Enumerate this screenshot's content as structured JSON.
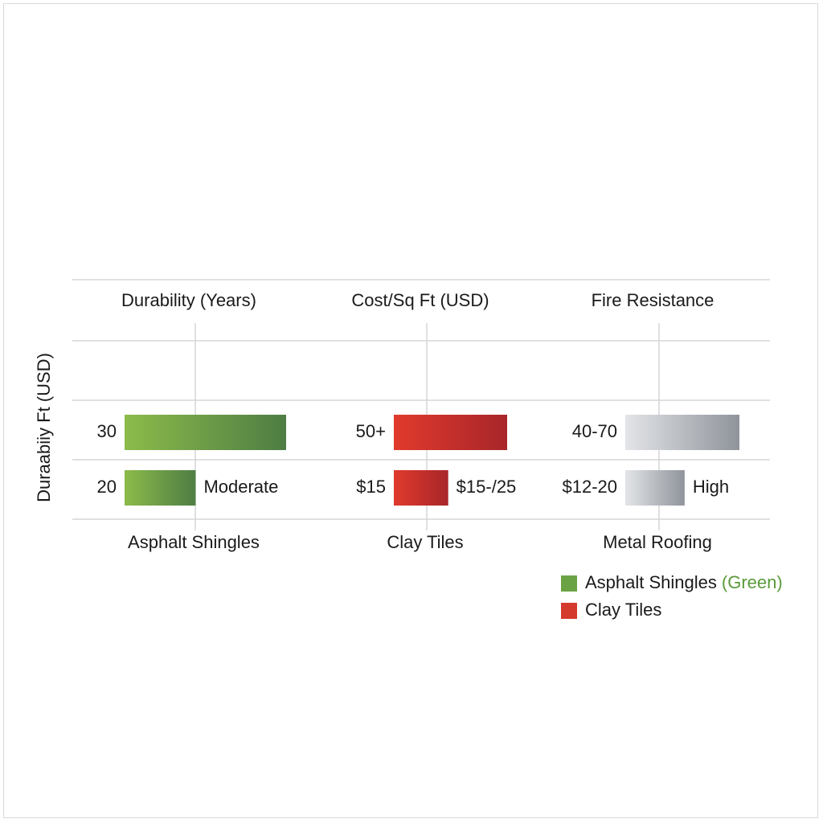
{
  "chart_data": {
    "type": "bar",
    "ylabel": "Duraabiiy Ft (USD)",
    "column_headers": [
      "Durability (Years)",
      "Cost/Sq Ft (USD)",
      "Fire Resistance"
    ],
    "categories": [
      "Asphalt Shingles",
      "Clay Tiles",
      "Metal Roofing"
    ],
    "groups": [
      {
        "category": "Asphalt Shingles",
        "colors": [
          "#8cbb4a",
          "#4e7d44"
        ],
        "bars": [
          {
            "left_label": "30",
            "right_label": "",
            "value": 1.0
          },
          {
            "left_label": "20",
            "right_label": "Moderate",
            "value": 0.44
          }
        ]
      },
      {
        "category": "Clay Tiles",
        "colors": [
          "#e03a2c",
          "#a8262a"
        ],
        "bars": [
          {
            "left_label": "50+",
            "right_label": "",
            "value": 1.0
          },
          {
            "left_label": "$15",
            "right_label": "$15-/25",
            "value": 0.48
          }
        ]
      },
      {
        "category": "Metal Roofing",
        "colors": [
          "#e3e5e8",
          "#8f949b"
        ],
        "bars": [
          {
            "left_label": "40-70",
            "right_label": "",
            "value": 1.0
          },
          {
            "left_label": "$12-20",
            "right_label": "High",
            "value": 0.52
          }
        ]
      }
    ],
    "legend": [
      {
        "label": "Asphalt Shingles",
        "suffix": "(Green)",
        "color": "#6aa344"
      },
      {
        "label": "Clay Tiles",
        "suffix": "",
        "color": "#d43a2e"
      }
    ],
    "legend_position": "bottom-right",
    "grid": true
  }
}
